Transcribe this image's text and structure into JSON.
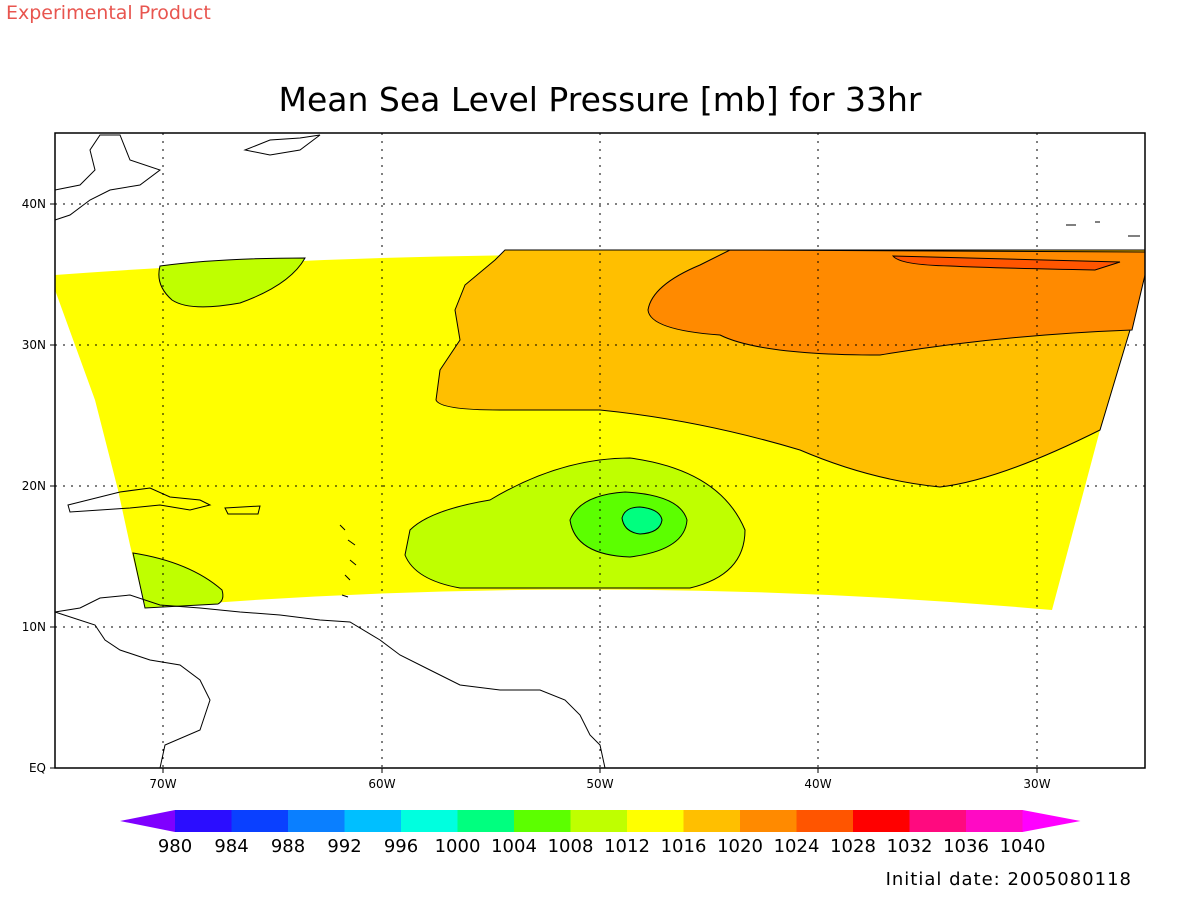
{
  "header": {
    "banner": "Experimental Product",
    "title": "Mean Sea Level Pressure [mb] for 33hr",
    "initial_date": "Initial date: 2005080118"
  },
  "map": {
    "lon_labels": [
      "70W",
      "60W",
      "50W",
      "40W",
      "30W"
    ],
    "lat_labels": [
      "EQ",
      "10N",
      "20N",
      "30N",
      "40N"
    ],
    "field": "Mean Sea Level Pressure",
    "units": "mb",
    "forecast_hour": "33hr"
  },
  "colorbar": {
    "levels": [
      "980",
      "984",
      "988",
      "992",
      "996",
      "1000",
      "1004",
      "1008",
      "1012",
      "1016",
      "1020",
      "1024",
      "1028",
      "1032",
      "1036",
      "1040"
    ],
    "colors": [
      "#7f00ff",
      "#2b0dff",
      "#0a40ff",
      "#0a7fff",
      "#00bfff",
      "#00ffdf",
      "#00ff7f",
      "#5cff00",
      "#bfff00",
      "#ffff00",
      "#ffbf00",
      "#ff8a00",
      "#ff5500",
      "#ff0000",
      "#ff0a7f",
      "#ff0ac4",
      "#ff00ff"
    ]
  }
}
